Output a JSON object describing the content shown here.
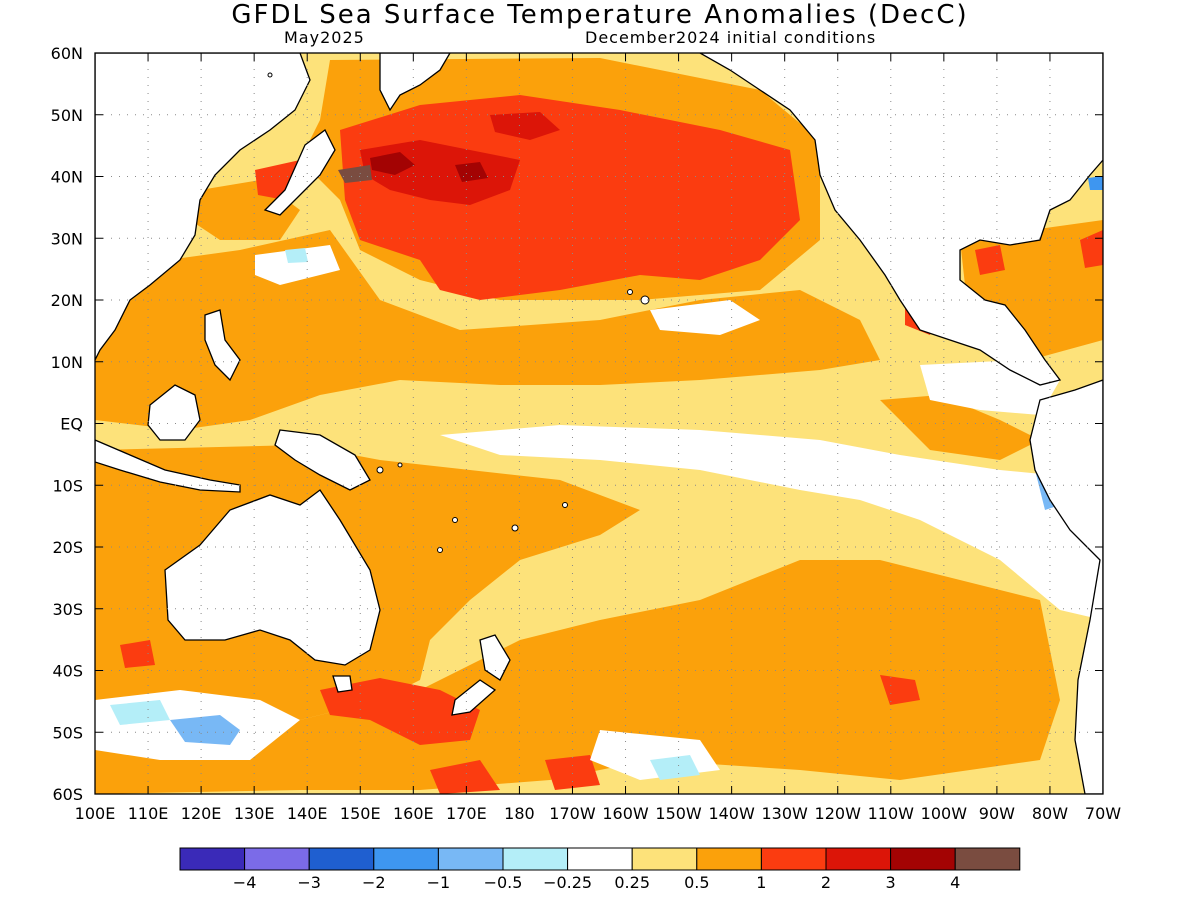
{
  "map": {
    "title": "GFDL Sea Surface Temperature Anomalies (DecC)",
    "target_month": "May2025",
    "initial_conditions": "December2024 initial conditions",
    "lat_labels": [
      "60N",
      "50N",
      "40N",
      "30N",
      "20N",
      "10N",
      "EQ",
      "10S",
      "20S",
      "30S",
      "40S",
      "50S",
      "60S"
    ],
    "lon_labels": [
      "100E",
      "110E",
      "120E",
      "130E",
      "140E",
      "150E",
      "160E",
      "170E",
      "180",
      "170W",
      "160W",
      "150W",
      "140W",
      "130W",
      "120W",
      "110W",
      "100W",
      "90W",
      "80W",
      "70W"
    ]
  },
  "legend": {
    "colors": [
      "#3a2ab8",
      "#7b6be8",
      "#1f5fd0",
      "#3e96f0",
      "#78b8f5",
      "#b4eef8",
      "#ffffff",
      "#fde27a",
      "#fba10b",
      "#fb3c10",
      "#dc1508",
      "#a30303",
      "#7a4c40"
    ],
    "labels": [
      "−4",
      "−3",
      "−2",
      "−1",
      "−0.5",
      "−0.25",
      "0.25",
      "0.5",
      "1",
      "2",
      "3",
      "4"
    ]
  },
  "colors": {
    "land_outline": "#000000",
    "grid": "#8a8a8a"
  }
}
